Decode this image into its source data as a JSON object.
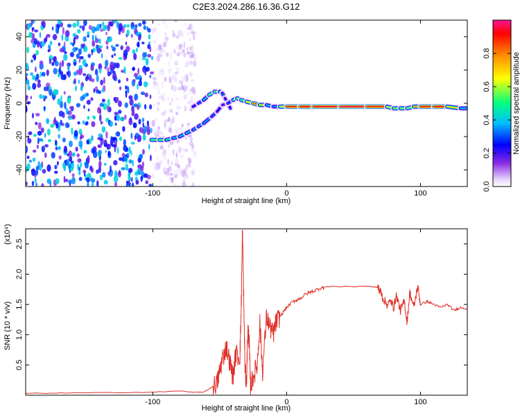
{
  "title": "C2E3.2024.286.16.36.G12",
  "chart_data": [
    {
      "type": "heatmap",
      "name": "spectrogram",
      "xlabel": "Height of straight line (km)",
      "ylabel": "Frequency (Hz)",
      "xlim": [
        -195,
        135
      ],
      "ylim": [
        -50,
        50
      ],
      "xticks": [
        -100,
        0,
        100
      ],
      "xtick_labels": [
        "-100",
        "0",
        "100"
      ],
      "yticks": [
        -40,
        -20,
        0,
        20,
        40
      ],
      "ytick_labels": [
        "-40",
        "-20",
        "0",
        "20",
        "40"
      ],
      "colorbar": {
        "label": "Normalized spectral amplitude",
        "range": [
          0,
          1
        ],
        "ticks": [
          0,
          0.2,
          0.4,
          0.6,
          0.8
        ],
        "tick_labels": [
          "0.0",
          "0.2",
          "0.4",
          "0.6",
          "0.8"
        ],
        "colormap": [
          "#ffffff",
          "#e8d8ff",
          "#8a2be2",
          "#0000ff",
          "#00bfff",
          "#00ff7f",
          "#ffff00",
          "#ff8000",
          "#ff0000",
          "#ff1493"
        ]
      },
      "ridge": {
        "x": [
          -101,
          -95,
          -90,
          -85,
          -80,
          -75,
          -70,
          -66,
          -62,
          -56,
          -52,
          -48,
          -44,
          -40,
          -37,
          -34,
          -30,
          -25,
          -20,
          -15,
          -10,
          -5,
          0,
          10,
          20,
          40,
          60,
          75,
          80,
          85,
          90,
          95,
          100,
          110,
          120,
          130,
          135
        ],
        "y": [
          -22,
          -22,
          -22,
          -21,
          -20,
          -18,
          -16,
          -14,
          -12,
          -8,
          -5,
          -1,
          0,
          2,
          3,
          2,
          1,
          0,
          -1,
          -1,
          -2,
          -2,
          -2,
          -2,
          -2,
          -2,
          -2,
          -2,
          -3,
          -3,
          -3,
          -2,
          -2,
          -2,
          -2,
          -3,
          -3
        ],
        "amplitude": [
          0.55,
          0.6,
          0.55,
          0.5,
          0.45,
          0.5,
          0.45,
          0.4,
          0.45,
          0.4,
          0.35,
          0.3,
          0.3,
          0.45,
          0.65,
          0.55,
          0.6,
          0.75,
          0.85,
          0.55,
          0.4,
          0.45,
          0.85,
          0.9,
          0.9,
          0.95,
          0.95,
          0.8,
          0.5,
          0.7,
          0.5,
          0.7,
          0.85,
          0.9,
          0.9,
          0.5,
          0.45
        ]
      },
      "upper_branch": {
        "x": [
          -70,
          -66,
          -62,
          -58,
          -54,
          -50,
          -48,
          -46,
          -44,
          -42
        ],
        "y": [
          -2,
          0,
          2,
          5,
          7,
          7,
          6,
          3,
          0,
          -3
        ],
        "amplitude": [
          0.3,
          0.35,
          0.4,
          0.55,
          0.6,
          0.55,
          0.45,
          0.35,
          0.3,
          0.35
        ]
      },
      "noise_region": {
        "x": [
          -195,
          -68
        ],
        "amplitude": [
          0.2,
          0.5
        ]
      }
    },
    {
      "type": "line",
      "name": "snr",
      "xlabel": "Height of straight line (km)",
      "ylabel": "SNR (10 * v/v)",
      "y_multiplier": "(x10⁴)",
      "xlim": [
        -195,
        135
      ],
      "ylim": [
        0,
        2.75
      ],
      "xticks": [
        -100,
        0,
        100
      ],
      "xtick_labels": [
        "-100",
        "0",
        "100"
      ],
      "yticks": [
        0.5,
        1.0,
        1.5,
        2.0,
        2.5
      ],
      "ytick_labels": [
        "0.5",
        "1.0",
        "1.5",
        "2.0",
        "2.5"
      ],
      "color": "#e0302a",
      "series": [
        {
          "x": [
            -195,
            -150,
            -100,
            -80,
            -70,
            -62,
            -58,
            -55,
            -52,
            -50,
            -48,
            -45,
            -42,
            -40,
            -38,
            -35,
            -34,
            -33,
            -32,
            -31,
            -30,
            -29,
            -28,
            -27,
            -25,
            -22,
            -20,
            -18,
            -15,
            -12,
            -10,
            -8,
            -5,
            0,
            5,
            10,
            15,
            20,
            25,
            30,
            35,
            40,
            45,
            50,
            55,
            60,
            65,
            68,
            70,
            72,
            75,
            78,
            80,
            82,
            85,
            88,
            90,
            92,
            95,
            98,
            100,
            105,
            110,
            115,
            120,
            125,
            130,
            135
          ],
          "y": [
            0.03,
            0.04,
            0.05,
            0.07,
            0.05,
            0.05,
            0.1,
            0.15,
            0.2,
            0.4,
            0.6,
            0.8,
            0.5,
            0.3,
            0.7,
            0.6,
            1.4,
            2.72,
            1.5,
            0.4,
            0.2,
            1.1,
            0.9,
            0.15,
            0.3,
            0.5,
            1.2,
            0.4,
            1.3,
            1.1,
            1.0,
            1.2,
            1.3,
            1.45,
            1.55,
            1.6,
            1.68,
            1.72,
            1.77,
            1.79,
            1.8,
            1.79,
            1.8,
            1.79,
            1.8,
            1.8,
            1.79,
            1.78,
            1.72,
            1.6,
            1.5,
            1.55,
            1.45,
            1.65,
            1.4,
            1.55,
            1.2,
            1.7,
            1.45,
            1.8,
            1.5,
            1.55,
            1.5,
            1.45,
            1.5,
            1.4,
            1.45,
            1.43
          ]
        }
      ]
    }
  ]
}
